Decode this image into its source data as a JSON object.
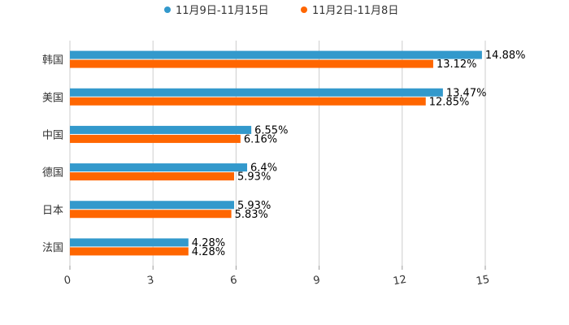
{
  "chart_data": {
    "type": "bar",
    "orientation": "horizontal",
    "categories": [
      "韩国",
      "美国",
      "中国",
      "德国",
      "日本",
      "法国"
    ],
    "series": [
      {
        "name": "11月9日-11月15日",
        "color": "#3399cc",
        "values": [
          14.88,
          13.47,
          6.55,
          6.4,
          5.93,
          4.28
        ],
        "labels": [
          "14.88%",
          "13.47%",
          "6.55%",
          "6.4%",
          "5.93%",
          "4.28%"
        ]
      },
      {
        "name": "11月2日-11月8日",
        "color": "#ff6600",
        "values": [
          13.12,
          12.85,
          6.16,
          5.93,
          5.83,
          4.28
        ],
        "labels": [
          "13.12%",
          "12.85%",
          "6.16%",
          "5.93%",
          "5.83%",
          "4.28%"
        ]
      }
    ],
    "xlim": [
      0,
      15
    ],
    "xticks": [
      0,
      3,
      6,
      9,
      12,
      15
    ],
    "xtick_labels": [
      "0",
      "3",
      "6",
      "9",
      "12",
      "15"
    ],
    "grid": "vertical",
    "legend_position": "top-center",
    "title": "",
    "xlabel": "",
    "ylabel": ""
  }
}
